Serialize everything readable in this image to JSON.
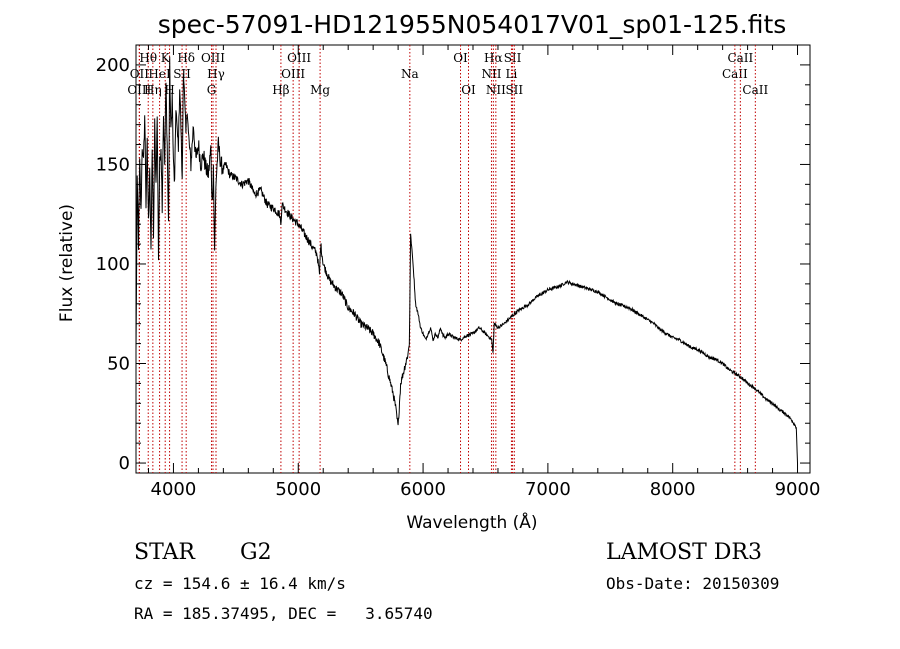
{
  "chart_data": {
    "type": "line",
    "title": "spec-57091-HD121955N054017V01_sp01-125.fits",
    "xlabel": "Wavelength (Å)",
    "ylabel": "Flux (relative)",
    "xlim": [
      3700,
      9100
    ],
    "ylim": [
      -5,
      210
    ],
    "xticks": [
      4000,
      5000,
      6000,
      7000,
      8000,
      9000
    ],
    "yticks": [
      0,
      50,
      100,
      150,
      200
    ],
    "series": [
      {
        "x": [
          3700,
          3710,
          3720,
          3730,
          3740,
          3750,
          3760,
          3770,
          3780,
          3790,
          3800,
          3810,
          3820,
          3830,
          3840,
          3850,
          3860,
          3870,
          3880,
          3890,
          3900,
          3910,
          3920,
          3930,
          3940,
          3950,
          3960,
          3970,
          3980,
          3990,
          4000,
          4010,
          4020,
          4030,
          4040,
          4050,
          4060,
          4070,
          4080,
          4090,
          4100,
          4110,
          4120,
          4140,
          4160,
          4180,
          4200,
          4220,
          4240,
          4260,
          4280,
          4300,
          4310,
          4320,
          4330,
          4340,
          4350,
          4360,
          4380,
          4400,
          4420,
          4450,
          4500,
          4550,
          4600,
          4650,
          4700,
          4750,
          4800,
          4850,
          4860,
          4870,
          4900,
          4950,
          5000,
          5050,
          5100,
          5150,
          5170,
          5180,
          5200,
          5250,
          5300,
          5350,
          5400,
          5450,
          5500,
          5550,
          5600,
          5650,
          5700,
          5720,
          5740,
          5760,
          5780,
          5800,
          5820,
          5840,
          5860,
          5880,
          5890,
          5900,
          5920,
          5940,
          5960,
          5980,
          6000,
          6020,
          6040,
          6060,
          6080,
          6100,
          6120,
          6140,
          6160,
          6180,
          6200,
          6250,
          6300,
          6350,
          6400,
          6450,
          6500,
          6550,
          6560,
          6570,
          6600,
          6650,
          6700,
          6750,
          6800,
          6850,
          6900,
          6950,
          7000,
          7050,
          7100,
          7150,
          7200,
          7250,
          7300,
          7350,
          7400,
          7450,
          7500,
          7550,
          7600,
          7650,
          7700,
          7750,
          7800,
          7850,
          7900,
          7950,
          8000,
          8050,
          8100,
          8150,
          8200,
          8250,
          8300,
          8350,
          8400,
          8450,
          8500,
          8550,
          8600,
          8650,
          8700,
          8750,
          8800,
          8850,
          8900,
          8950,
          8990,
          9000
        ],
        "y": [
          55,
          140,
          110,
          150,
          125,
          160,
          150,
          175,
          130,
          160,
          120,
          150,
          103,
          160,
          110,
          170,
          140,
          175,
          103,
          150,
          160,
          130,
          175,
          150,
          190,
          160,
          120,
          200,
          165,
          185,
          150,
          140,
          180,
          165,
          160,
          190,
          170,
          140,
          200,
          180,
          165,
          180,
          165,
          150,
          170,
          152,
          160,
          150,
          155,
          148,
          145,
          158,
          130,
          150,
          105,
          140,
          150,
          160,
          150,
          148,
          150,
          145,
          143,
          140,
          142,
          135,
          137,
          130,
          128,
          125,
          120,
          130,
          127,
          123,
          120,
          115,
          110,
          105,
          95,
          110,
          100,
          92,
          88,
          85,
          78,
          75,
          70,
          68,
          65,
          60,
          50,
          45,
          40,
          35,
          28,
          18,
          40,
          45,
          50,
          55,
          60,
          115,
          100,
          80,
          75,
          68,
          65,
          62,
          65,
          68,
          62,
          65,
          63,
          68,
          64,
          63,
          65,
          63,
          62,
          64,
          65,
          68,
          65,
          62,
          55,
          70,
          68,
          70,
          73,
          76,
          78,
          80,
          83,
          85,
          87,
          88,
          89,
          91,
          90,
          89,
          88,
          87,
          86,
          84,
          82,
          80,
          79,
          78,
          76,
          74,
          72,
          70,
          67,
          65,
          63,
          62,
          60,
          58,
          57,
          55,
          53,
          52,
          50,
          47,
          45,
          43,
          40,
          38,
          35,
          32,
          30,
          27,
          25,
          22,
          18,
          0
        ]
      }
    ],
    "lines": [
      {
        "label": "Hθ",
        "wl": 3798,
        "row": 0
      },
      {
        "label": "OII",
        "wl": 3727,
        "row": 1
      },
      {
        "label": "OIII",
        "wl": 3727,
        "row": 2
      },
      {
        "label": "Hη",
        "wl": 3835,
        "row": 2
      },
      {
        "label": "HeI",
        "wl": 3889,
        "row": 1
      },
      {
        "label": "K",
        "wl": 3934,
        "row": 0
      },
      {
        "label": "H",
        "wl": 3969,
        "row": 2
      },
      {
        "label": "SII",
        "wl": 4069,
        "row": 1
      },
      {
        "label": "Hδ",
        "wl": 4102,
        "row": 0
      },
      {
        "label": "OIII",
        "wl": 4317,
        "row": 0
      },
      {
        "label": "Hγ",
        "wl": 4341,
        "row": 1
      },
      {
        "label": "G",
        "wl": 4305,
        "row": 2
      },
      {
        "label": "Hβ",
        "wl": 4861,
        "row": 2
      },
      {
        "label": "OIII",
        "wl": 4959,
        "row": 1
      },
      {
        "label": "OIII",
        "wl": 5007,
        "row": 0
      },
      {
        "label": "Mg",
        "wl": 5175,
        "row": 2
      },
      {
        "label": "Na",
        "wl": 5894,
        "row": 1
      },
      {
        "label": "OI",
        "wl": 6300,
        "row": 0
      },
      {
        "label": "OI",
        "wl": 6364,
        "row": 2
      },
      {
        "label": "NII",
        "wl": 6548,
        "row": 1
      },
      {
        "label": "Hα",
        "wl": 6563,
        "row": 0
      },
      {
        "label": "NII",
        "wl": 6583,
        "row": 2
      },
      {
        "label": "SII",
        "wl": 6717,
        "row": 0
      },
      {
        "label": "Li",
        "wl": 6708,
        "row": 1
      },
      {
        "label": "SII",
        "wl": 6731,
        "row": 2
      },
      {
        "label": "CaII",
        "wl": 8498,
        "row": 1
      },
      {
        "label": "CaII",
        "wl": 8542,
        "row": 0
      },
      {
        "label": "CaII",
        "wl": 8662,
        "row": 2
      }
    ]
  },
  "info": {
    "class_label": "STAR",
    "subclass": "G2",
    "survey": "LAMOST DR3",
    "cz": "cz = 154.6 ± 16.4 km/s",
    "obs_date": "Obs-Date: 20150309",
    "radec": "RA = 185.37495, DEC =   3.65740"
  }
}
